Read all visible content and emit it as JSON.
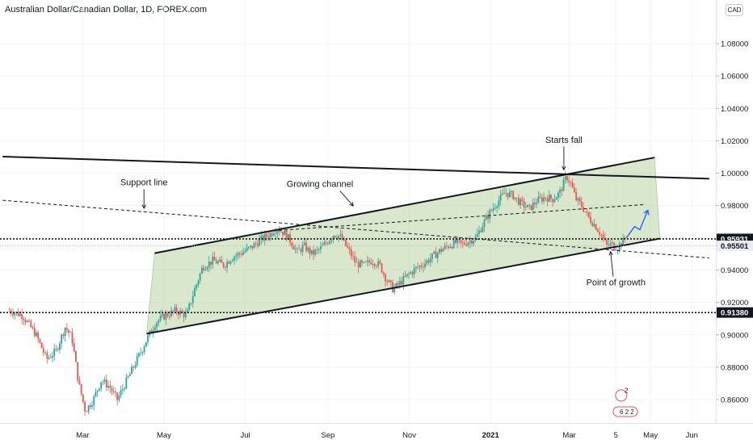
{
  "header": {
    "title": "Australian Dollar/Canadian Dollar, 1D, FOREX.com",
    "currency_button": "CAD"
  },
  "chart_data": {
    "type": "candlestick",
    "ylim": [
      0.8455,
      1.107
    ],
    "yticks": [
      "1.08000",
      "1.06000",
      "1.04000",
      "1.02000",
      "1.00000",
      "0.98000",
      "0.96000",
      "0.94000",
      "0.92000",
      "0.90000",
      "0.88000",
      "0.86000"
    ],
    "xticks": [
      {
        "label": "Mar",
        "day": 0
      },
      {
        "label": "May",
        "day": 61
      },
      {
        "label": "Jul",
        "day": 122
      },
      {
        "label": "Sep",
        "day": 184
      },
      {
        "label": "Nov",
        "day": 245
      },
      {
        "label": "2021",
        "day": 306
      },
      {
        "label": "Mar",
        "day": 365
      },
      {
        "label": "5",
        "day": 400
      },
      {
        "label": "May",
        "day": 426
      },
      {
        "label": "Jun",
        "day": 457
      }
    ],
    "price_labels": [
      {
        "value": "0.95931",
        "price": 0.95931,
        "style": "dark"
      },
      {
        "value": "0.95501",
        "price": 0.95501,
        "style": "light"
      },
      {
        "value": "0.91380",
        "price": 0.9138,
        "style": "dark"
      }
    ],
    "path": [
      [
        -55,
        0.915
      ],
      [
        -45,
        0.912
      ],
      [
        -35,
        0.9
      ],
      [
        -27,
        0.885
      ],
      [
        -20,
        0.89
      ],
      [
        -13,
        0.905
      ],
      [
        -8,
        0.898
      ],
      [
        -3,
        0.87
      ],
      [
        2,
        0.853
      ],
      [
        8,
        0.86
      ],
      [
        14,
        0.872
      ],
      [
        20,
        0.868
      ],
      [
        26,
        0.86
      ],
      [
        32,
        0.87
      ],
      [
        38,
        0.88
      ],
      [
        44,
        0.89
      ],
      [
        48,
        0.897
      ],
      [
        55,
        0.908
      ],
      [
        62,
        0.912
      ],
      [
        70,
        0.915
      ],
      [
        78,
        0.912
      ],
      [
        84,
        0.928
      ],
      [
        90,
        0.942
      ],
      [
        98,
        0.946
      ],
      [
        106,
        0.943
      ],
      [
        112,
        0.948
      ],
      [
        120,
        0.951
      ],
      [
        128,
        0.955
      ],
      [
        134,
        0.959
      ],
      [
        140,
        0.962
      ],
      [
        146,
        0.966
      ],
      [
        151,
        0.963
      ],
      [
        156,
        0.958
      ],
      [
        161,
        0.951
      ],
      [
        166,
        0.955
      ],
      [
        172,
        0.95
      ],
      [
        178,
        0.953
      ],
      [
        183,
        0.957
      ],
      [
        188,
        0.962
      ],
      [
        193,
        0.961
      ],
      [
        199,
        0.953
      ],
      [
        205,
        0.944
      ],
      [
        211,
        0.943
      ],
      [
        217,
        0.946
      ],
      [
        223,
        0.943
      ],
      [
        228,
        0.934
      ],
      [
        233,
        0.928
      ],
      [
        238,
        0.932
      ],
      [
        244,
        0.937
      ],
      [
        250,
        0.941
      ],
      [
        256,
        0.944
      ],
      [
        262,
        0.948
      ],
      [
        268,
        0.952
      ],
      [
        274,
        0.955
      ],
      [
        280,
        0.957
      ],
      [
        285,
        0.956
      ],
      [
        290,
        0.958
      ],
      [
        295,
        0.96
      ],
      [
        300,
        0.968
      ],
      [
        305,
        0.975
      ],
      [
        311,
        0.982
      ],
      [
        317,
        0.988
      ],
      [
        323,
        0.986
      ],
      [
        329,
        0.981
      ],
      [
        335,
        0.978
      ],
      [
        341,
        0.983
      ],
      [
        347,
        0.985
      ],
      [
        353,
        0.984
      ],
      [
        358,
        0.988
      ],
      [
        363,
        0.998
      ],
      [
        366,
        0.994
      ],
      [
        370,
        0.984
      ],
      [
        375,
        0.979
      ],
      [
        380,
        0.972
      ],
      [
        385,
        0.967
      ],
      [
        389,
        0.962
      ],
      [
        393,
        0.955
      ],
      [
        397,
        0.956
      ],
      [
        401,
        0.954
      ],
      [
        404,
        0.957
      ],
      [
        408,
        0.96
      ]
    ],
    "annotations": [
      {
        "text": "Starts fall",
        "x": 361,
        "price": 1.0186
      },
      {
        "text": "Support line",
        "x": 46,
        "price": 0.9925
      },
      {
        "text": "Growing channel",
        "x": 178,
        "price": 0.9915
      },
      {
        "text": "Point of growth",
        "x": 400,
        "price": 0.9305
      }
    ],
    "lines": {
      "resistance": {
        "from": [
          -60,
          1.0102
        ],
        "to": [
          470,
          0.9965
        ]
      },
      "channel_top": {
        "from": [
          54,
          0.9505
        ],
        "to": [
          429,
          1.0096
        ]
      },
      "channel_bottom": {
        "from": [
          48,
          0.9007
        ],
        "to": [
          433,
          0.9595
        ]
      },
      "support_dashed": {
        "from": [
          -60,
          0.9832
        ],
        "to": [
          470,
          0.9475
        ]
      },
      "mid_dashed": {
        "from": [
          143,
          0.9643
        ],
        "to": [
          422,
          0.9806
        ]
      },
      "projection": [
        [
          408,
          0.96
        ],
        [
          414,
          0.967
        ],
        [
          418,
          0.965
        ],
        [
          424,
          0.977
        ]
      ]
    },
    "badges": [
      {
        "text": "2"
      },
      {
        "text": "6 2 2"
      }
    ]
  },
  "colors": {
    "up": "#26a69a",
    "down": "#ef5350",
    "channel_fill": "#b9d3a2",
    "projection": "#2962ff",
    "label_dark": "#131722",
    "label_light": "#e9ecf2"
  }
}
